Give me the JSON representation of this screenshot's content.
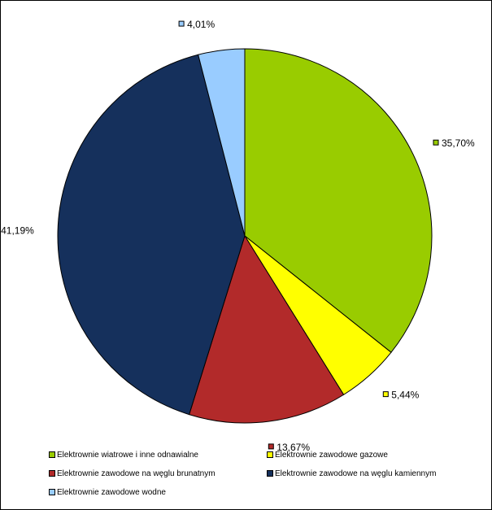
{
  "chart_data": {
    "type": "pie",
    "start_angle_deg": 0,
    "direction": "clockwise",
    "slices": [
      {
        "name": "Elektrownie wiatrowe i inne odnawialne",
        "value": 35.7,
        "label": "35,70%",
        "color": "#99cc00"
      },
      {
        "name": "Elektrownie zawodowe gazowe",
        "value": 5.44,
        "label": "5,44%",
        "color": "#ffff00"
      },
      {
        "name": "Elektrownie zawodowe na węglu brunatnym",
        "value": 13.67,
        "label": "13,67%",
        "color": "#b22a2a"
      },
      {
        "name": "Elektrownie zawodowe na węglu kamiennym",
        "value": 41.19,
        "label": "41,19%",
        "color": "#15305c"
      },
      {
        "name": "Elektrownie zawodowe wodne",
        "value": 4.01,
        "label": "4,01%",
        "color": "#99ccff"
      }
    ],
    "legend_position": "bottom"
  }
}
